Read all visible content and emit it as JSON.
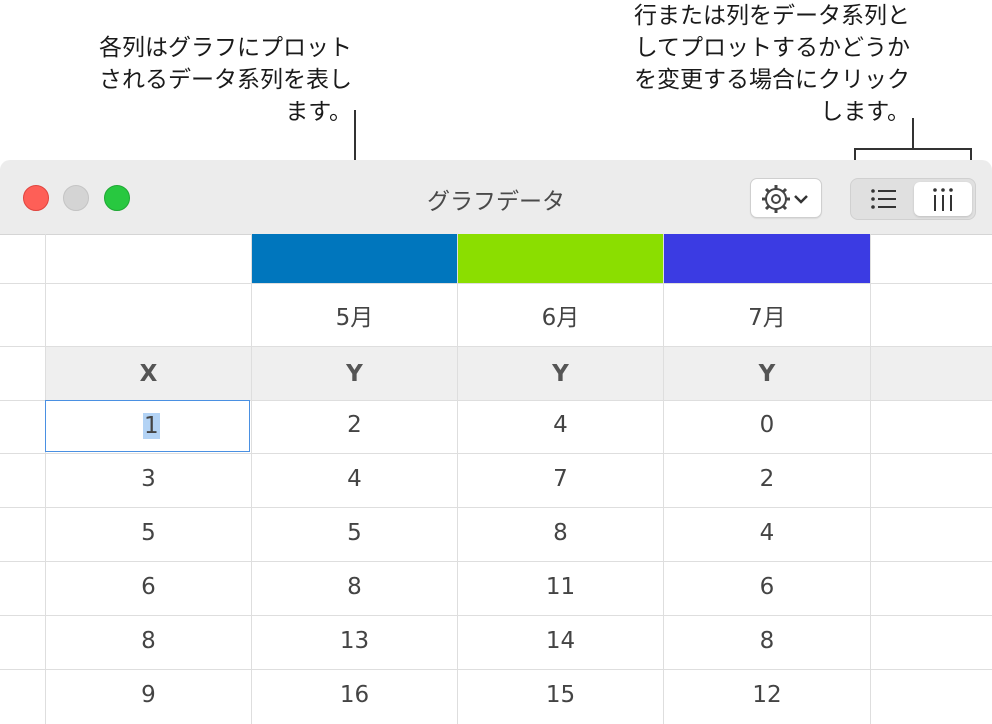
{
  "callouts": {
    "left": "各列はグラフにプロットされるデータ系列を表します。",
    "right": "行または列をデータ系列としてプロットするかどうかを変更する場合にクリックします。"
  },
  "window": {
    "title": "グラフデータ",
    "controls": [
      "close",
      "minimize",
      "zoom"
    ],
    "toolbar": {
      "action_icon": "gear-icon",
      "segments": [
        {
          "icon": "rows-icon",
          "selected": false
        },
        {
          "icon": "columns-icon",
          "selected": true
        }
      ]
    }
  },
  "series_colors": [
    "#0076bd",
    "#8bde00",
    "#3b3be3"
  ],
  "table": {
    "series_names": [
      "5月",
      "6月",
      "7月"
    ],
    "axis_headers": [
      "X",
      "Y",
      "Y",
      "Y"
    ],
    "rows": [
      [
        "1",
        "2",
        "4",
        "0"
      ],
      [
        "3",
        "4",
        "7",
        "2"
      ],
      [
        "5",
        "5",
        "8",
        "4"
      ],
      [
        "6",
        "8",
        "11",
        "6"
      ],
      [
        "8",
        "13",
        "14",
        "8"
      ],
      [
        "9",
        "16",
        "15",
        "12"
      ]
    ],
    "selected_cell": "1"
  }
}
